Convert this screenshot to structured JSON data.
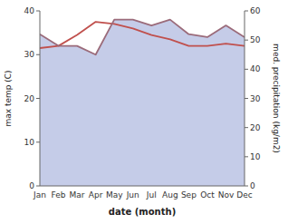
{
  "chart_data": {
    "type": "line",
    "x_label": "date (month)",
    "y_label": "max temp (C)",
    "y2_label": "med. precipitation (kg/m2)",
    "categories": [
      "Jan",
      "Feb",
      "Mar",
      "Apr",
      "May",
      "Jun",
      "Jul",
      "Aug",
      "Sep",
      "Oct",
      "Nov",
      "Dec"
    ],
    "series": [
      {
        "type": "area",
        "axis": "y2",
        "color": "#c5cce8",
        "values": [
          52,
          48,
          48,
          45,
          57,
          57,
          55,
          57,
          52,
          51,
          55,
          51
        ]
      },
      {
        "type": "line",
        "axis": "y",
        "color": "#c0504d",
        "values": [
          31.5,
          32.0,
          34.5,
          37.5,
          37.0,
          36.0,
          34.5,
          33.5,
          32.0,
          32.0,
          32.5,
          32.0
        ]
      },
      {
        "type": "line",
        "axis": "y2",
        "color": "#9b6b7a",
        "values": [
          52,
          48,
          48,
          45,
          57,
          57,
          55,
          57,
          52,
          51,
          55,
          51
        ]
      }
    ],
    "ylim": [
      0,
      40
    ],
    "yticks": [
      0,
      10,
      20,
      30,
      40
    ],
    "y2lim": [
      0,
      60
    ],
    "y2ticks": [
      0,
      10,
      20,
      30,
      40,
      50,
      60
    ],
    "grid": false
  }
}
